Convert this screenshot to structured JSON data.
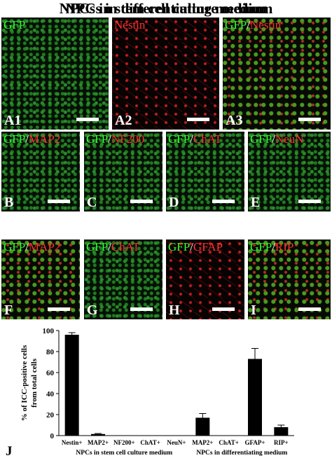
{
  "titles": [
    "NPCs in stem cell culture medium",
    "NPCs in differentiating medium"
  ],
  "panels": [
    {
      "stain": [
        {
          "text": "GFP",
          "color": "#33ff33"
        }
      ],
      "label": "A1"
    },
    {
      "stain": [
        {
          "text": "Nestin",
          "color": "#ff3030"
        }
      ],
      "label": "A2"
    },
    {
      "stain": [
        {
          "text": "GFP",
          "color": "#33ff33"
        },
        {
          "text": "/",
          "color": "#ffffff"
        },
        {
          "text": "Nestin",
          "color": "#ff3030"
        }
      ],
      "label": "A3"
    },
    {
      "stain": [
        {
          "text": "GFP",
          "color": "#33ff33"
        },
        {
          "text": "/",
          "color": "#ffffff"
        },
        {
          "text": "MAP2",
          "color": "#ff3030"
        }
      ],
      "label": "B"
    },
    {
      "stain": [
        {
          "text": "GFP",
          "color": "#33ff33"
        },
        {
          "text": "/",
          "color": "#ffffff"
        },
        {
          "text": "NF200",
          "color": "#ff3030"
        }
      ],
      "label": "C"
    },
    {
      "stain": [
        {
          "text": "GFP",
          "color": "#33ff33"
        },
        {
          "text": "/",
          "color": "#ffffff"
        },
        {
          "text": "ChAT",
          "color": "#ff3030"
        }
      ],
      "label": "D"
    },
    {
      "stain": [
        {
          "text": "GFP",
          "color": "#33ff33"
        },
        {
          "text": "/",
          "color": "#ffffff"
        },
        {
          "text": "NeuN",
          "color": "#ff3030"
        }
      ],
      "label": "E"
    },
    {
      "stain": [
        {
          "text": "GFP",
          "color": "#33ff33"
        },
        {
          "text": "/",
          "color": "#ffffff"
        },
        {
          "text": "MAP2",
          "color": "#ff3030"
        }
      ],
      "label": "F"
    },
    {
      "stain": [
        {
          "text": "GFP",
          "color": "#33ff33"
        },
        {
          "text": "/",
          "color": "#ffffff"
        },
        {
          "text": "ChAT",
          "color": "#ff3030"
        }
      ],
      "label": "G"
    },
    {
      "stain": [
        {
          "text": "GFP",
          "color": "#33ff33"
        },
        {
          "text": "/",
          "color": "#ffffff"
        },
        {
          "text": "GFAP",
          "color": "#ff3030"
        }
      ],
      "label": "H"
    },
    {
      "stain": [
        {
          "text": "GFP",
          "color": "#33ff33"
        },
        {
          "text": "/",
          "color": "#ffffff"
        },
        {
          "text": "RIP",
          "color": "#ff3030"
        }
      ],
      "label": "I"
    }
  ],
  "chart_data": {
    "type": "bar",
    "panel_label": "J",
    "ylabel": [
      "% of ICC-positive cells",
      "from total cells"
    ],
    "categories": [
      "Nestin+",
      "MAP2+",
      "NF200+",
      "ChAT+",
      "NeuN+",
      "MAP2+",
      "ChAT+",
      "GFAP+",
      "RIP+"
    ],
    "values": [
      96,
      1.5,
      0,
      0,
      0,
      17,
      0,
      73,
      8
    ],
    "errors": [
      2,
      0.5,
      0,
      0,
      0,
      4,
      0,
      10,
      2
    ],
    "color": "#000000",
    "groups": [
      {
        "name": "NPCs in stem cell culture medium",
        "start": 0,
        "end": 4
      },
      {
        "name": "NPCs in differentiating medium",
        "start": 5,
        "end": 8
      }
    ],
    "ylim": [
      0,
      100
    ],
    "yticks": [
      0,
      20,
      40,
      60,
      80,
      100
    ]
  }
}
